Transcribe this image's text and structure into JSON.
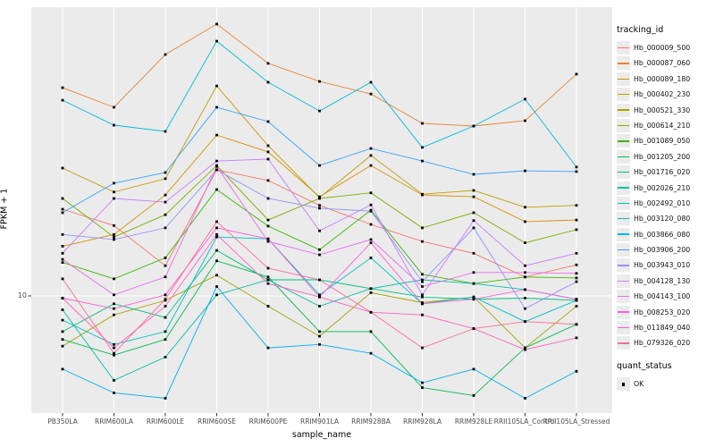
{
  "chart_data": {
    "type": "line",
    "title": "",
    "xlabel": "sample_name",
    "ylabel": "FPKM + 1",
    "y_scale": "log10",
    "y_tick_labels": [
      "10"
    ],
    "ylim": [
      3.4,
      140
    ],
    "grid": true,
    "legend_position": "right",
    "legend_title": "tracking_id",
    "quant_status_title": "quant_status",
    "quant_status_label": "OK",
    "point_shape": "filled-square",
    "panel_bg": "#ebebeb",
    "grid_color": "#ffffff",
    "point_color": "#000000",
    "categories": [
      "PB350LA",
      "RRIM600LA",
      "RRIM600LE",
      "RRIM600SE",
      "RRIM600PE",
      "RRIM901LA",
      "RRIM928BA",
      "RRIM928LA",
      "RRIM928LE",
      "RRII105LA_Control",
      "RRII105LA_Stressed"
    ],
    "series": [
      {
        "name": "Hb_000009_500",
        "color": "#F8766D",
        "values": [
          22.2,
          19.1,
          13.2,
          31.9,
          28.9,
          23.0,
          19.3,
          16.5,
          14.8,
          11.9,
          13.3
        ]
      },
      {
        "name": "Hb_000087_060",
        "color": "#EA8331",
        "values": [
          67.9,
          56.7,
          92.1,
          121.9,
          84.9,
          71.9,
          64.1,
          48.9,
          47.7,
          50.1,
          76.9
        ]
      },
      {
        "name": "Hb_000089_180",
        "color": "#D89000",
        "values": [
          15.8,
          17.6,
          25.3,
          43.9,
          37.6,
          24.9,
          33.2,
          25.3,
          24.9,
          19.8,
          20.1
        ]
      },
      {
        "name": "Hb_000402_230",
        "color": "#C09B00",
        "values": [
          32.4,
          26.0,
          29.4,
          69.0,
          39.8,
          24.7,
          36.4,
          25.5,
          26.4,
          22.6,
          23.0
        ]
      },
      {
        "name": "Hb_000521_330",
        "color": "#A3A500",
        "values": [
          6.3,
          8.4,
          9.6,
          12.1,
          9.1,
          6.9,
          10.3,
          9.4,
          9.9,
          6.2,
          9.1
        ]
      },
      {
        "name": "Hb_000614_210",
        "color": "#7CAE00",
        "values": [
          24.5,
          17.2,
          21.1,
          33.2,
          20.1,
          24.5,
          25.8,
          18.7,
          21.5,
          16.3,
          18.4
        ]
      },
      {
        "name": "Hb_001089_050",
        "color": "#39B600",
        "values": [
          13.6,
          11.7,
          14.2,
          26.6,
          19.0,
          15.3,
          22.0,
          12.2,
          11.2,
          11.9,
          11.8
        ]
      },
      {
        "name": "Hb_001205_200",
        "color": "#00BB4E",
        "values": [
          6.7,
          5.8,
          6.7,
          13.8,
          11.9,
          7.2,
          7.2,
          4.3,
          4.0,
          6.2,
          7.7
        ]
      },
      {
        "name": "Hb_001716_020",
        "color": "#00BF7D",
        "values": [
          7.2,
          9.3,
          8.2,
          15.2,
          11.6,
          11.6,
          10.7,
          9.9,
          9.7,
          9.8,
          9.6
        ]
      },
      {
        "name": "Hb_002026_210",
        "color": "#00C1A3",
        "values": [
          8.8,
          4.6,
          5.7,
          10.1,
          11.6,
          9.1,
          10.7,
          11.6,
          11.2,
          10.6,
          9.7
        ]
      },
      {
        "name": "Hb_002492_010",
        "color": "#00BFC4",
        "values": [
          8.0,
          6.4,
          7.2,
          17.2,
          16.9,
          10.1,
          14.2,
          9.3,
          9.9,
          7.9,
          9.6
        ]
      },
      {
        "name": "Hb_003120_080",
        "color": "#00BAE0",
        "values": [
          60.5,
          48.1,
          45.4,
          104.2,
          71.4,
          54.8,
          71.4,
          39.2,
          47.7,
          61.1,
          32.7
        ]
      },
      {
        "name": "Hb_003866_080",
        "color": "#00B0F6",
        "values": [
          5.1,
          4.1,
          3.9,
          10.9,
          6.2,
          6.4,
          5.9,
          4.5,
          5.1,
          3.9,
          5.0
        ]
      },
      {
        "name": "Hb_003906_200",
        "color": "#35A2FF",
        "values": [
          21.5,
          28.2,
          31.1,
          56.7,
          49.7,
          33.2,
          38.8,
          34.6,
          30.6,
          31.6,
          31.4
        ]
      },
      {
        "name": "Hb_003943_010",
        "color": "#9590FF",
        "values": [
          17.6,
          16.8,
          18.7,
          31.9,
          24.5,
          22.4,
          21.8,
          11.4,
          18.7,
          8.9,
          11.4
        ]
      },
      {
        "name": "Hb_004128_130",
        "color": "#C77CFF",
        "values": [
          14.8,
          24.5,
          23.7,
          34.6,
          35.2,
          18.2,
          23.1,
          10.1,
          20.0,
          13.2,
          14.8
        ]
      },
      {
        "name": "Hb_004143_100",
        "color": "#E76BF3",
        "values": [
          14.0,
          10.1,
          11.9,
          32.9,
          16.5,
          14.6,
          16.8,
          10.9,
          12.4,
          12.4,
          12.3
        ]
      },
      {
        "name": "Hb_008253_020",
        "color": "#FA62DB",
        "values": [
          9.8,
          8.9,
          10.1,
          18.7,
          16.9,
          9.9,
          16.3,
          9.3,
          9.7,
          10.6,
          9.7
        ]
      },
      {
        "name": "Hb_011849_040",
        "color": "#FF62BC",
        "values": [
          9.8,
          6.2,
          9.1,
          17.6,
          11.2,
          9.9,
          8.6,
          8.4,
          7.4,
          6.1,
          6.8
        ]
      },
      {
        "name": "Hb_079326_020",
        "color": "#FF6A98",
        "values": [
          11.7,
          5.9,
          9.7,
          19.8,
          12.9,
          11.6,
          8.6,
          6.2,
          7.4,
          7.9,
          7.7
        ]
      }
    ]
  }
}
